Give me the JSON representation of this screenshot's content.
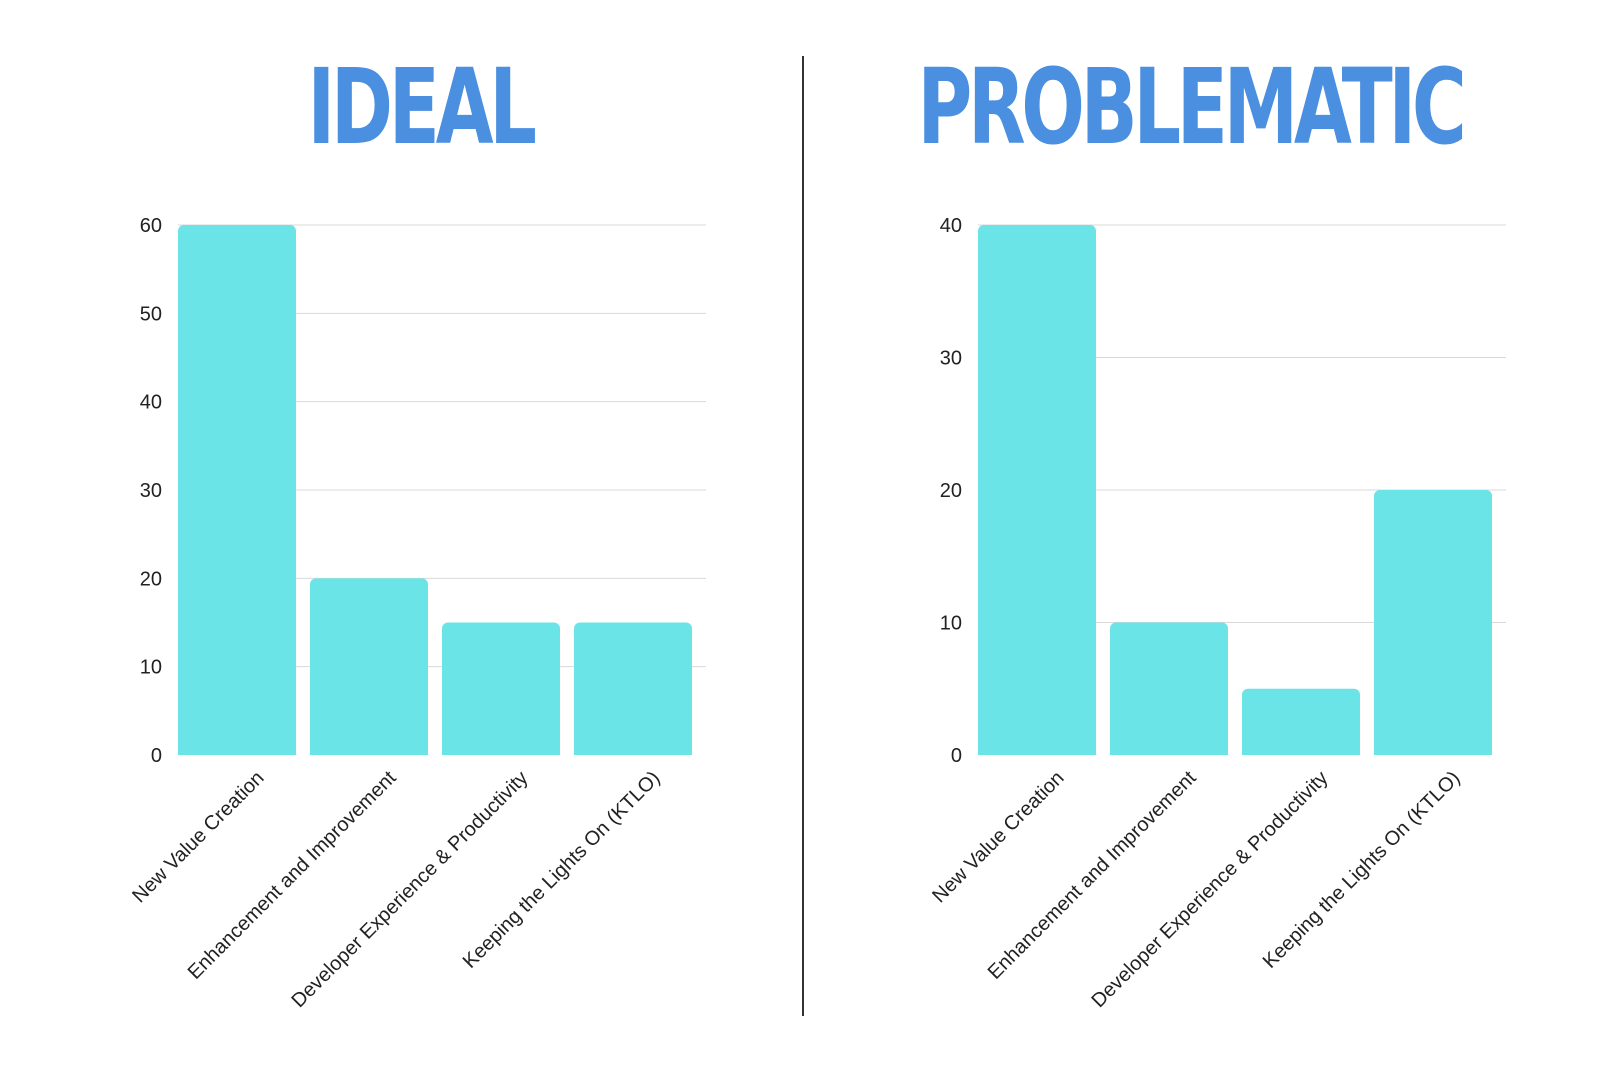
{
  "titles": {
    "left": "IDEAL",
    "right": "PROBLEMATIC"
  },
  "colors": {
    "title": "#4a8fe0",
    "bar": "#6ae4e6",
    "grid": "#d9d9d9",
    "divider": "#333333"
  },
  "chart_data": [
    {
      "type": "bar",
      "title": "IDEAL",
      "categories": [
        "New Value Creation",
        "Enhancement and Improvement",
        "Developer Experience & Productivity",
        "Keeping the Lights On (KTLO)"
      ],
      "values": [
        60,
        20,
        15,
        15
      ],
      "ylim": [
        0,
        60
      ],
      "yticks": [
        0,
        10,
        20,
        30,
        40,
        50,
        60
      ],
      "grid": true,
      "xlabel": "",
      "ylabel": ""
    },
    {
      "type": "bar",
      "title": "PROBLEMATIC",
      "categories": [
        "New Value Creation",
        "Enhancement and Improvement",
        "Developer Experience & Productivity",
        "Keeping the Lights On (KTLO)"
      ],
      "values": [
        40,
        10,
        5,
        20
      ],
      "ylim": [
        0,
        40
      ],
      "yticks": [
        0,
        10,
        20,
        30,
        40
      ],
      "grid": true,
      "xlabel": "",
      "ylabel": ""
    }
  ]
}
